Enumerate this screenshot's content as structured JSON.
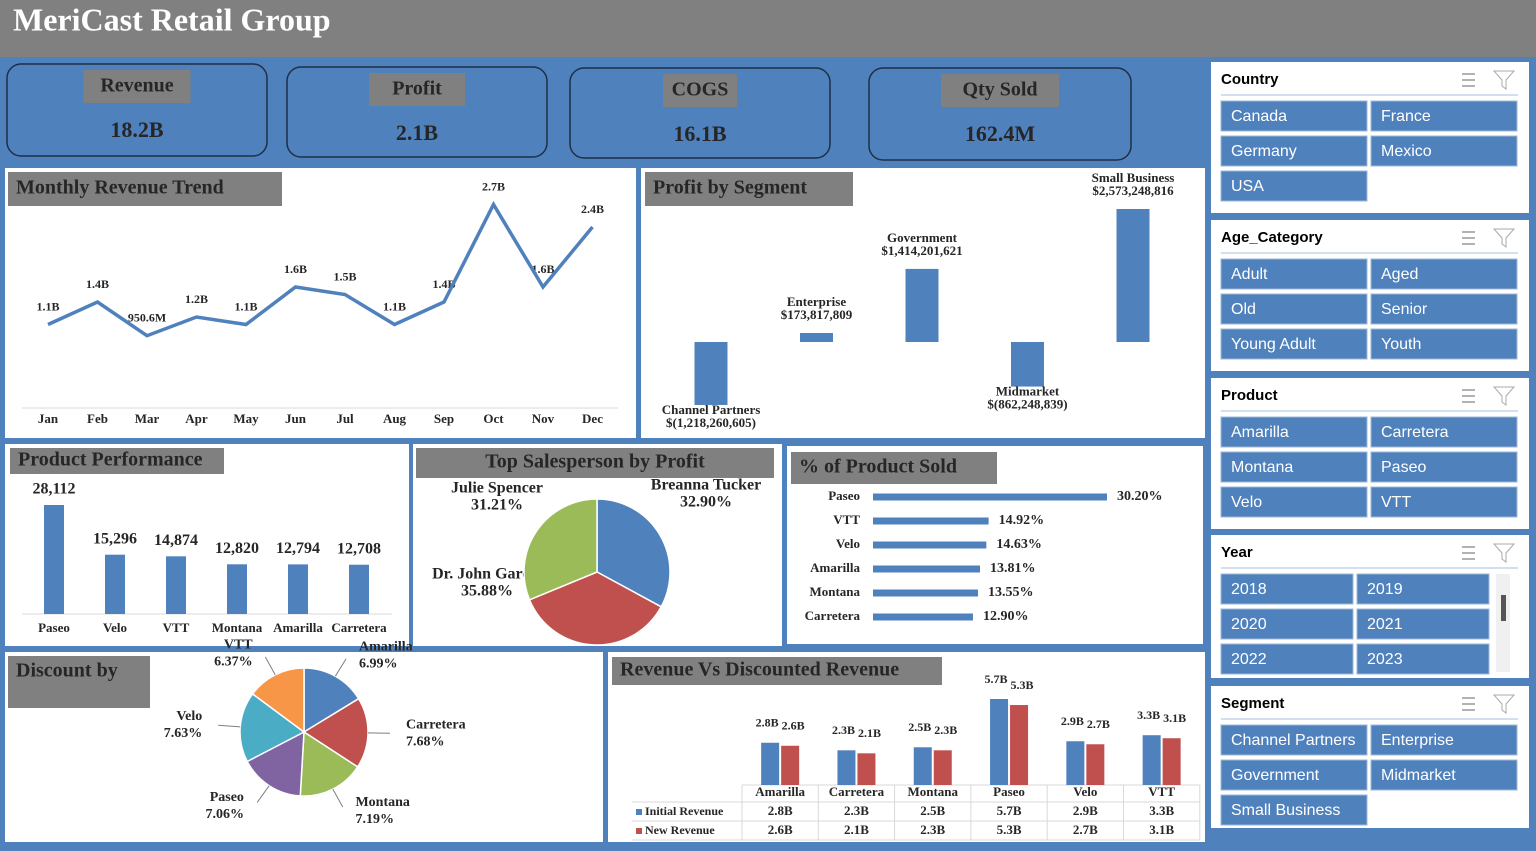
{
  "header": {
    "title": "MeriCast Retail Group"
  },
  "kpis": [
    {
      "label": "Revenue",
      "value": "18.2B"
    },
    {
      "label": "Profit",
      "value": "2.1B"
    },
    {
      "label": "COGS",
      "value": "16.1B"
    },
    {
      "label": "Qty Sold",
      "value": "162.4M"
    }
  ],
  "chart_data": [
    {
      "type": "line",
      "title": "Monthly Revenue Trend",
      "categories": [
        "Jan",
        "Feb",
        "Mar",
        "Apr",
        "May",
        "Jun",
        "Jul",
        "Aug",
        "Sep",
        "Oct",
        "Nov",
        "Dec"
      ],
      "values": [
        1.1,
        1.4,
        0.9506,
        1.2,
        1.1,
        1.6,
        1.5,
        1.1,
        1.4,
        2.7,
        1.6,
        2.4
      ],
      "value_labels": [
        "1.1B",
        "1.4B",
        "950.6M",
        "1.2B",
        "1.1B",
        "1.6B",
        "1.5B",
        "1.1B",
        "1.4B",
        "2.7B",
        "1.6B",
        "2.4B"
      ],
      "color": "#4f81bd"
    },
    {
      "type": "bar",
      "title": "Profit by Segment",
      "categories": [
        "Channel Partners",
        "Enterprise",
        "Government",
        "Midmarket",
        "Small Business"
      ],
      "values": [
        -1218260605,
        173817809,
        1414201621,
        -862248839,
        2573248816
      ],
      "value_labels": [
        "$(1,218,260,605)",
        "$173,817,809",
        "$1,414,201,621",
        "$(862,248,839)",
        "$2,573,248,816"
      ],
      "color": "#4f81bd"
    },
    {
      "type": "bar",
      "title": "Product Performance",
      "categories": [
        "Paseo",
        "Velo",
        "VTT",
        "Montana",
        "Amarilla",
        "Carretera"
      ],
      "values": [
        28112,
        15296,
        14874,
        12820,
        12794,
        12708
      ],
      "value_labels": [
        "28,112",
        "15,296",
        "14,874",
        "12,820",
        "12,794",
        "12,708"
      ],
      "color": "#4f81bd"
    },
    {
      "type": "pie",
      "title": "Top Salesperson by Profit",
      "categories": [
        "Breanna Tucker",
        "Dr. John Garcia",
        "Julie Spencer"
      ],
      "values": [
        32.9,
        35.88,
        31.21
      ],
      "value_labels": [
        "32.90%",
        "35.88%",
        "31.21%"
      ],
      "colors": [
        "#4f81bd",
        "#c0504d",
        "#9bbb59"
      ]
    },
    {
      "type": "hbar",
      "title": "% of Product Sold",
      "categories": [
        "Paseo",
        "VTT",
        "Velo",
        "Amarilla",
        "Montana",
        "Carretera"
      ],
      "values": [
        30.2,
        14.92,
        14.63,
        13.81,
        13.55,
        12.9
      ],
      "value_labels": [
        "30.20%",
        "14.92%",
        "14.63%",
        "13.81%",
        "13.55%",
        "12.90%"
      ],
      "color": "#4f81bd"
    },
    {
      "type": "pie",
      "title": "Discount by",
      "categories": [
        "Amarilla",
        "Carretera",
        "Montana",
        "Paseo",
        "Velo",
        "VTT"
      ],
      "values": [
        6.99,
        7.68,
        7.19,
        7.06,
        7.63,
        6.37
      ],
      "value_labels": [
        "6.99%",
        "7.68%",
        "7.19%",
        "7.06%",
        "7.63%",
        "6.37%"
      ],
      "colors": [
        "#4f81bd",
        "#c0504d",
        "#9bbb59",
        "#8064a2",
        "#4bacc6",
        "#f79646"
      ]
    },
    {
      "type": "groupedbar",
      "title": "Revenue Vs Discounted Revenue",
      "categories": [
        "Amarilla",
        "Carretera",
        "Montana",
        "Paseo",
        "Velo",
        "VTT"
      ],
      "series": [
        {
          "name": "Initial Revenue",
          "color": "#4f81bd",
          "values": [
            2.8,
            2.3,
            2.5,
            5.7,
            2.9,
            3.3
          ],
          "value_labels": [
            "2.8B",
            "2.3B",
            "2.5B",
            "5.7B",
            "2.9B",
            "3.3B"
          ]
        },
        {
          "name": "New Revenue",
          "color": "#c0504d",
          "values": [
            2.6,
            2.1,
            2.3,
            5.3,
            2.7,
            3.1
          ],
          "value_labels": [
            "2.6B",
            "2.1B",
            "2.3B",
            "5.3B",
            "2.7B",
            "3.1B"
          ]
        }
      ]
    }
  ],
  "slicers": [
    {
      "title": "Country",
      "items": [
        "Canada",
        "France",
        "Germany",
        "Mexico",
        "USA"
      ]
    },
    {
      "title": "Age_Category",
      "items": [
        "Adult",
        "Aged",
        "Old",
        "Senior",
        "Young Adult",
        "Youth"
      ]
    },
    {
      "title": "Product",
      "items": [
        "Amarilla",
        "Carretera",
        "Montana",
        "Paseo",
        "Velo",
        "VTT"
      ]
    },
    {
      "title": "Year",
      "items": [
        "2018",
        "2019",
        "2020",
        "2021",
        "2022",
        "2023"
      ]
    },
    {
      "title": "Segment",
      "items": [
        "Channel Partners",
        "Enterprise",
        "Government",
        "Midmarket",
        "Small Business"
      ]
    }
  ]
}
